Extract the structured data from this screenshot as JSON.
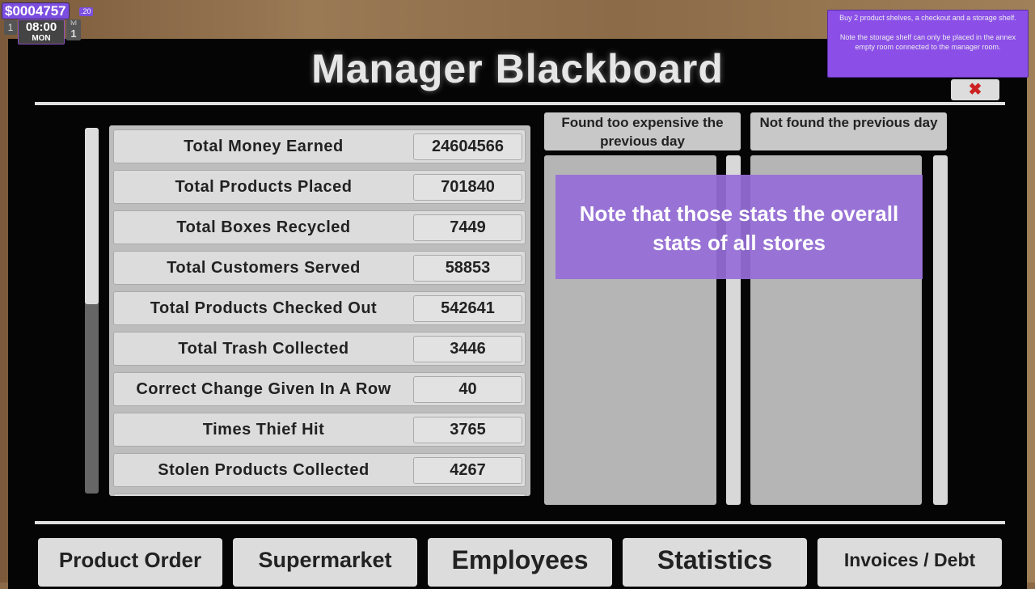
{
  "hud": {
    "money": "$0004757",
    "cents": ".20",
    "day": "1",
    "time": "08:00",
    "weekday": "MON",
    "level_label": "lvl",
    "level": "1"
  },
  "tooltip": {
    "line1": "Buy 2 product shelves, a checkout and a storage shelf.",
    "line2": "Note the storage shelf can only be placed in the annex empty room connected to the manager room."
  },
  "title": "Manager Blackboard",
  "close_icon": "close-x-icon",
  "stats": [
    {
      "label": "Total Money Earned",
      "value": "24604566"
    },
    {
      "label": "Total Products Placed",
      "value": "701840"
    },
    {
      "label": "Total Boxes Recycled",
      "value": "7449"
    },
    {
      "label": "Total Customers Served",
      "value": "58853"
    },
    {
      "label": "Total Products Checked Out",
      "value": "542641"
    },
    {
      "label": "Total Trash Collected",
      "value": "3446"
    },
    {
      "label": "Correct Change Given In A Row",
      "value": "40"
    },
    {
      "label": "Times Thief Hit",
      "value": "3765"
    },
    {
      "label": "Stolen Products Collected",
      "value": "4267"
    }
  ],
  "columns": {
    "expensive": "Found too expensive the previous day",
    "not_found": "Not found the previous day"
  },
  "overlay": "Note that those stats the overall stats of all stores",
  "tabs": [
    "Product Order",
    "Supermarket",
    "Employees",
    "Statistics",
    "Invoices / Debt"
  ],
  "colors": {
    "accent": "#8b4fe8",
    "board": "#050505"
  }
}
